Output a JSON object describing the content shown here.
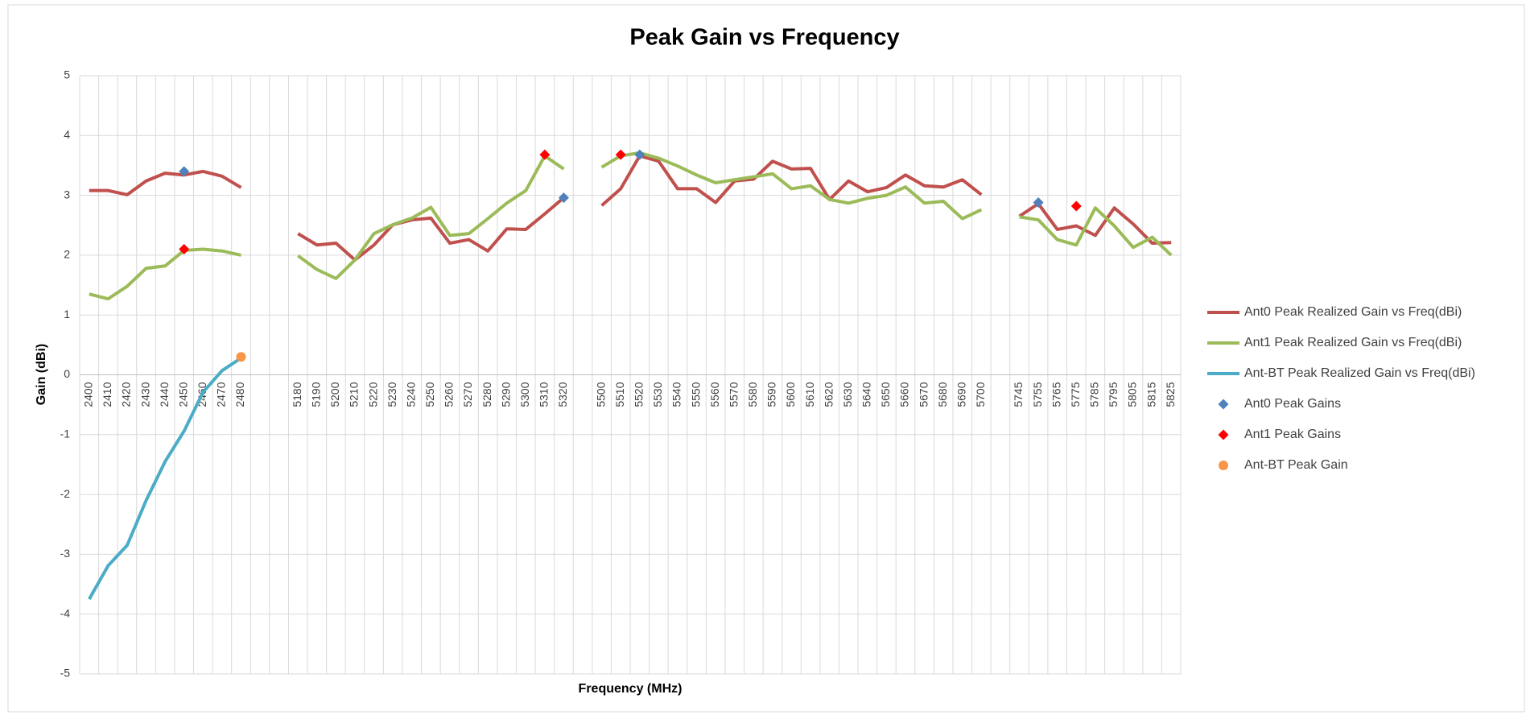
{
  "chart_data": {
    "type": "line",
    "title": "Peak Gain vs Frequency",
    "x_label": "Frequency (MHz)",
    "y_label": "Gain (dBi)",
    "categories": [
      "2400",
      "2410",
      "2420",
      "2430",
      "2440",
      "2450",
      "2460",
      "2470",
      "2480",
      null,
      null,
      "5180",
      "5190",
      "5200",
      "5210",
      "5220",
      "5230",
      "5240",
      "5250",
      "5260",
      "5270",
      "5280",
      "5290",
      "5300",
      "5310",
      "5320",
      null,
      "5500",
      "5510",
      "5520",
      "5530",
      "5540",
      "5550",
      "5560",
      "5570",
      "5580",
      "5590",
      "5600",
      "5610",
      "5620",
      "5630",
      "5640",
      "5650",
      "5660",
      "5670",
      "5680",
      "5690",
      "5700",
      null,
      "5745",
      "5755",
      "5765",
      "5775",
      "5785",
      "5795",
      "5805",
      "5815",
      "5825"
    ],
    "ylim": [
      -5,
      5
    ],
    "yticks": [
      -5,
      -4,
      -3,
      -2,
      -1,
      0,
      1,
      2,
      3,
      4,
      5
    ],
    "grid": true,
    "legend": "right",
    "series": [
      {
        "name": "Ant0 Peak Realized Gain vs Freq(dBi)",
        "color": "#c0504d",
        "marker": "none",
        "values": [
          3.08,
          3.08,
          3.01,
          3.24,
          3.37,
          3.34,
          3.4,
          3.32,
          3.13,
          null,
          null,
          2.36,
          2.17,
          2.2,
          1.92,
          2.17,
          2.51,
          2.59,
          2.62,
          2.2,
          2.26,
          2.07,
          2.44,
          2.43,
          2.69,
          2.96,
          null,
          2.83,
          3.11,
          3.66,
          3.57,
          3.11,
          3.11,
          2.88,
          3.24,
          3.27,
          3.57,
          3.44,
          3.45,
          2.93,
          3.24,
          3.06,
          3.13,
          3.34,
          3.16,
          3.14,
          3.26,
          3.01,
          null,
          2.65,
          2.86,
          2.43,
          2.49,
          2.33,
          2.79,
          2.52,
          2.2,
          2.21
        ]
      },
      {
        "name": "Ant1 Peak Realized Gain vs Freq(dBi)",
        "color": "#9bbb59",
        "marker": "none",
        "values": [
          1.35,
          1.27,
          1.48,
          1.78,
          1.82,
          2.08,
          2.1,
          2.07,
          2.0,
          null,
          null,
          1.99,
          1.76,
          1.61,
          1.92,
          2.36,
          2.51,
          2.62,
          2.8,
          2.33,
          2.36,
          2.61,
          2.87,
          3.08,
          3.66,
          3.44,
          null,
          3.47,
          3.66,
          3.71,
          3.62,
          3.49,
          3.34,
          3.21,
          3.26,
          3.31,
          3.36,
          3.11,
          3.16,
          2.93,
          2.87,
          2.95,
          3.0,
          3.14,
          2.87,
          2.9,
          2.61,
          2.76,
          null,
          2.64,
          2.59,
          2.26,
          2.17,
          2.79,
          2.49,
          2.13,
          2.3,
          2.0
        ]
      },
      {
        "name": "Ant-BT Peak Realized Gain vs Freq(dBi)",
        "color": "#4bacc6",
        "marker": "none",
        "values": [
          -3.75,
          -3.19,
          -2.85,
          -2.1,
          -1.45,
          -0.94,
          -0.29,
          0.07,
          0.28,
          null,
          null,
          null,
          null,
          null,
          null,
          null,
          null,
          null,
          null,
          null,
          null,
          null,
          null,
          null,
          null,
          null,
          null,
          null,
          null,
          null,
          null,
          null,
          null,
          null,
          null,
          null,
          null,
          null,
          null,
          null,
          null,
          null,
          null,
          null,
          null,
          null,
          null,
          null,
          null,
          null,
          null,
          null,
          null,
          null,
          null,
          null,
          null,
          null
        ]
      },
      {
        "name": "Ant0 Peak Gains",
        "color": "#4f81bd",
        "marker": "diamond",
        "values": [
          null,
          null,
          null,
          null,
          null,
          3.4,
          null,
          null,
          null,
          null,
          null,
          null,
          null,
          null,
          null,
          null,
          null,
          null,
          null,
          null,
          null,
          null,
          null,
          null,
          null,
          2.96,
          null,
          null,
          null,
          3.68,
          null,
          null,
          null,
          null,
          null,
          null,
          null,
          null,
          null,
          null,
          null,
          null,
          null,
          null,
          null,
          null,
          null,
          null,
          null,
          null,
          2.88,
          null,
          null,
          null,
          null,
          null,
          null,
          null
        ]
      },
      {
        "name": "Ant1 Peak Gains",
        "color": "#ff0000",
        "marker": "diamond",
        "values": [
          null,
          null,
          null,
          null,
          null,
          2.1,
          null,
          null,
          null,
          null,
          null,
          null,
          null,
          null,
          null,
          null,
          null,
          null,
          null,
          null,
          null,
          null,
          null,
          null,
          3.68,
          null,
          null,
          null,
          3.68,
          null,
          null,
          null,
          null,
          null,
          null,
          null,
          null,
          null,
          null,
          null,
          null,
          null,
          null,
          null,
          null,
          null,
          null,
          null,
          null,
          null,
          null,
          null,
          2.82,
          null,
          null,
          null,
          null,
          null
        ]
      },
      {
        "name": "Ant-BT Peak Gain",
        "color": "#f79646",
        "marker": "circle",
        "values": [
          null,
          null,
          null,
          null,
          null,
          null,
          null,
          null,
          0.3,
          null,
          null,
          null,
          null,
          null,
          null,
          null,
          null,
          null,
          null,
          null,
          null,
          null,
          null,
          null,
          null,
          null,
          null,
          null,
          null,
          null,
          null,
          null,
          null,
          null,
          null,
          null,
          null,
          null,
          null,
          null,
          null,
          null,
          null,
          null,
          null,
          null,
          null,
          null,
          null,
          null,
          null,
          null,
          null,
          null,
          null,
          null,
          null,
          null
        ]
      }
    ]
  }
}
